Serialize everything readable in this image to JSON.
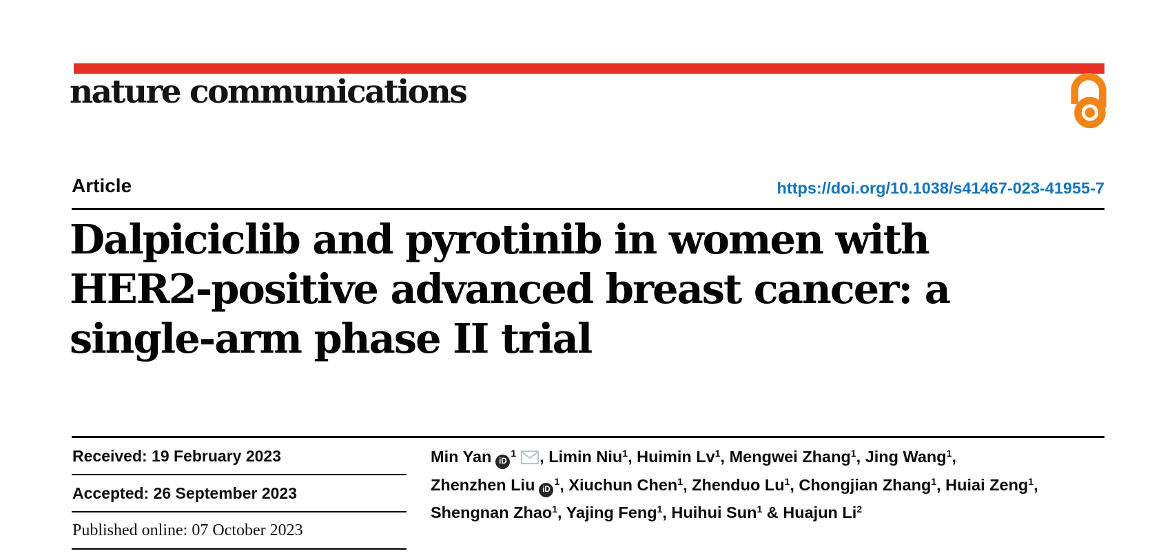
{
  "journal": {
    "logo_text": "nature communications"
  },
  "icons": {
    "open_access": "open-lock",
    "orcid_text": "iD",
    "email": "envelope"
  },
  "article": {
    "type_label": "Article",
    "doi": "https://doi.org/10.1038/s41467-023-41955-7"
  },
  "title": {
    "lines": [
      "Dalpiciclib and pyrotinib in women with",
      "HER2-positive advanced breast cancer: a",
      "single-arm phase II trial"
    ]
  },
  "dates": {
    "received": "Received: 19 February 2023",
    "accepted": "Accepted: 26 September 2023",
    "published": "Published online: 07 October 2023"
  },
  "authors": {
    "lines": [
      [
        {
          "t": "Min Yan"
        },
        {
          "icon": "orcid"
        },
        {
          "sup": "1"
        },
        {
          "icon": "email"
        },
        {
          "t": ", Limin Niu"
        },
        {
          "sup": "1"
        },
        {
          "t": ", Huimin Lv"
        },
        {
          "sup": "1"
        },
        {
          "t": ", Mengwei Zhang"
        },
        {
          "sup": "1"
        },
        {
          "t": ", Jing Wang"
        },
        {
          "sup": "1"
        },
        {
          "t": ","
        }
      ],
      [
        {
          "t": "Zhenzhen Liu"
        },
        {
          "icon": "orcid"
        },
        {
          "sup": "1"
        },
        {
          "t": ", Xiuchun Chen"
        },
        {
          "sup": "1"
        },
        {
          "t": ", Zhenduo Lu"
        },
        {
          "sup": "1"
        },
        {
          "t": ", Chongjian Zhang"
        },
        {
          "sup": "1"
        },
        {
          "t": ", Huiai Zeng"
        },
        {
          "sup": "1"
        },
        {
          "t": ","
        }
      ],
      [
        {
          "t": "Shengnan Zhao"
        },
        {
          "sup": "1"
        },
        {
          "t": ", Yajing Feng"
        },
        {
          "sup": "1"
        },
        {
          "t": ", Huihui Sun"
        },
        {
          "sup": "1"
        },
        {
          "t": " & Huajun Li"
        },
        {
          "sup": "2"
        }
      ]
    ]
  },
  "colors": {
    "brand_red": "#e53125",
    "open_access_orange": "#f28518",
    "doi_blue": "#1474b8",
    "orcid_black": "#262626",
    "email_gray": "#b9c4cc"
  }
}
